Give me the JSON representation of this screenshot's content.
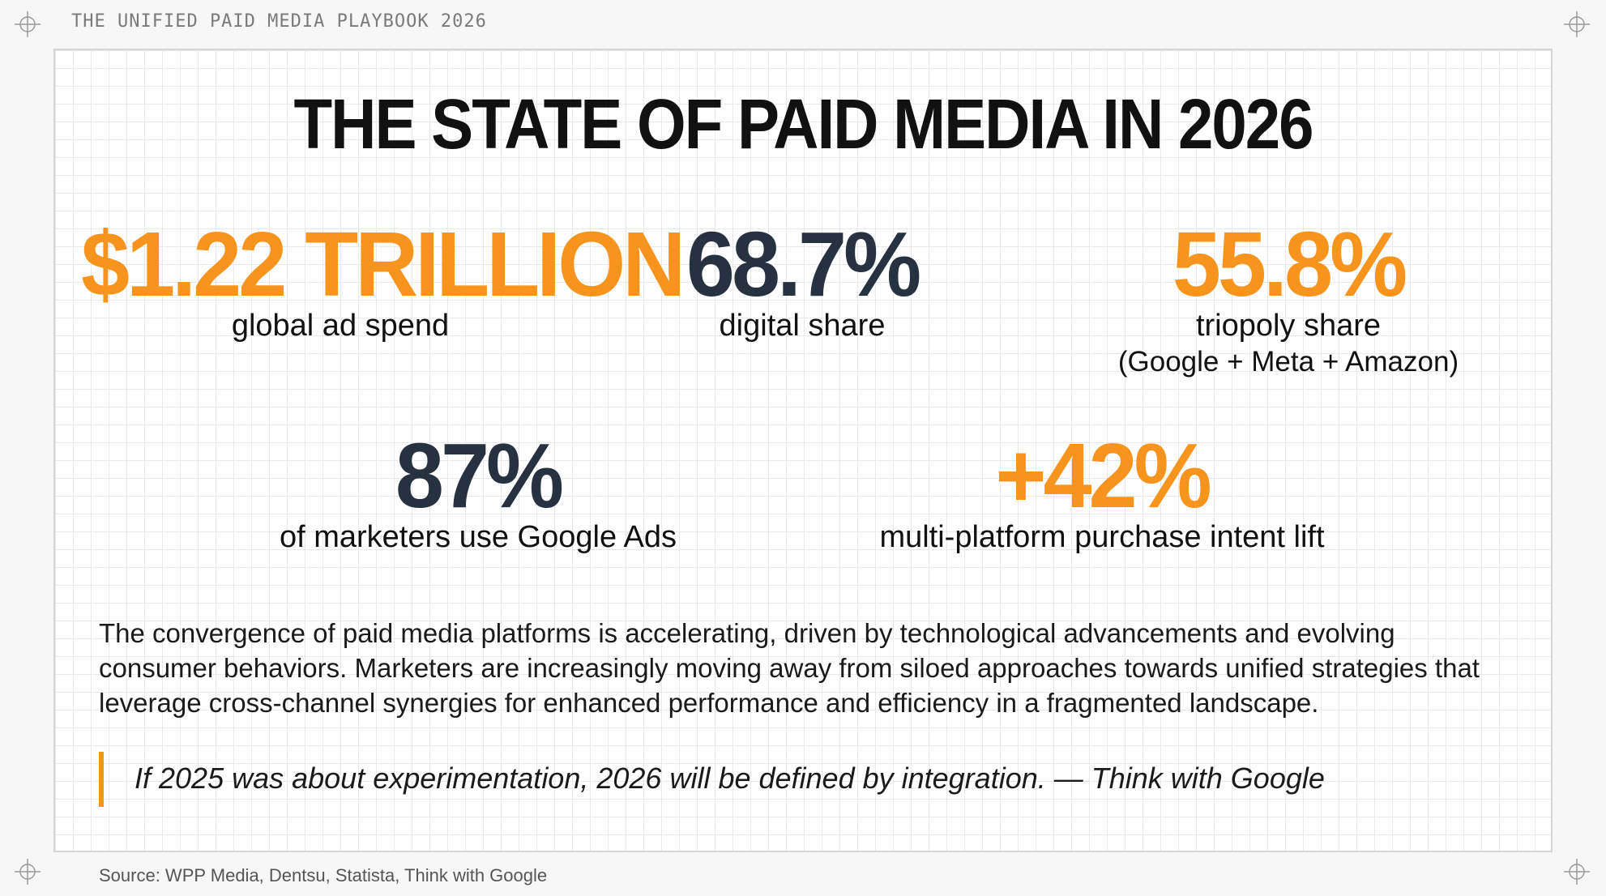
{
  "header": {
    "label": "THE UNIFIED PAID MEDIA PLAYBOOK 2026"
  },
  "title": "THE STATE OF PAID MEDIA IN 2026",
  "stats": [
    {
      "value": "$1.22 TRILLION",
      "label": "global ad spend",
      "color": "#f7941d"
    },
    {
      "value": "68.7%",
      "label": "digital share",
      "color": "#273240"
    },
    {
      "value": "55.8%",
      "label": "triopoly share",
      "sublabel": "(Google + Meta + Amazon)",
      "color": "#f7941d"
    },
    {
      "value": "87%",
      "label": "of marketers use Google Ads",
      "color": "#273240"
    },
    {
      "value": "+42%",
      "label": "multi-platform purchase intent lift",
      "color": "#f7941d"
    }
  ],
  "paragraph": {
    "lines": [
      "The convergence of paid media platforms is accelerating, driven by technological advancements and evolving",
      "consumer behaviors. Marketers are increasingly moving away from siloed approaches towards unified strategies that",
      "leverage cross-channel synergies for enhanced performance and efficiency in a fragmented landscape."
    ]
  },
  "quote": {
    "text": "If 2025 was about experimentation, 2026 will be defined by integration. — Think with Google"
  },
  "source": "Source: WPP Media, Dentsu, Statista, Think with Google",
  "colors": {
    "accent": "#f7941d",
    "navy": "#273240"
  },
  "icons": [
    "crosshair-icon"
  ]
}
